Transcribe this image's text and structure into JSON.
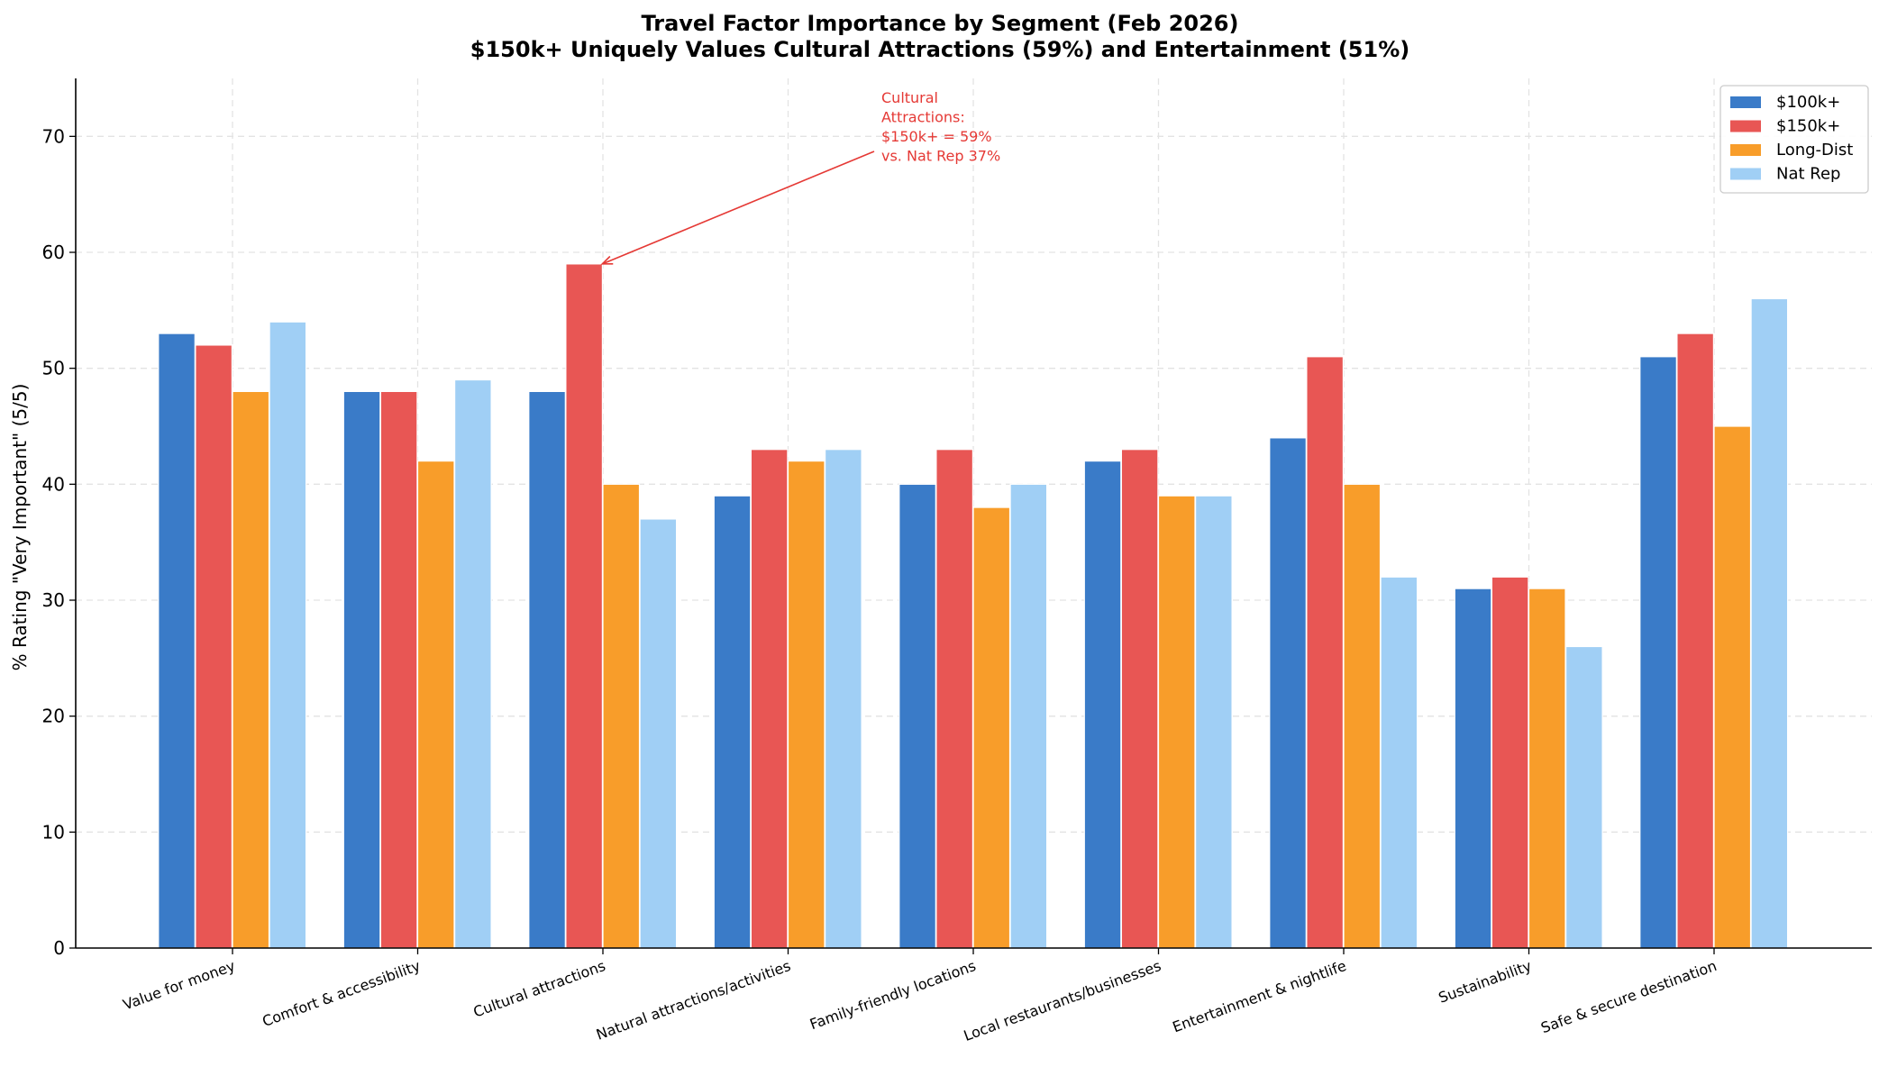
{
  "chart_data": {
    "type": "bar",
    "title": "Travel Factor Importance by Segment (Feb 2026)",
    "subtitle": "$150k+ Uniquely Values Cultural Attractions (59%) and Entertainment (51%)",
    "xlabel": "",
    "ylabel": "% Rating \"Very Important\" (5/5)",
    "ylim": [
      0,
      75
    ],
    "yticks": [
      0,
      10,
      20,
      30,
      40,
      50,
      60,
      70
    ],
    "grid": true,
    "legend_position": "top-right",
    "categories": [
      "Value for money",
      "Comfort & accessibility",
      "Cultural attractions",
      "Natural attractions/activities",
      "Family-friendly locations",
      "Local restaurants/businesses",
      "Entertainment & nightlife",
      "Sustainability",
      "Safe & secure destination"
    ],
    "series": [
      {
        "name": "$100k+",
        "color": "#3a7bc8",
        "values": [
          53,
          48,
          48,
          39,
          40,
          42,
          44,
          31,
          51
        ]
      },
      {
        "name": "$150k+",
        "color": "#e85654",
        "values": [
          52,
          48,
          59,
          43,
          43,
          43,
          51,
          32,
          53
        ]
      },
      {
        "name": "Long-Dist",
        "color": "#f89d2a",
        "values": [
          48,
          42,
          40,
          42,
          38,
          39,
          40,
          31,
          45
        ]
      },
      {
        "name": "Nat Rep",
        "color": "#a0cff5",
        "values": [
          54,
          49,
          37,
          43,
          40,
          39,
          32,
          26,
          56
        ]
      }
    ],
    "annotation": {
      "lines": [
        "Cultural",
        "Attractions:",
        "$150k+ = 59%",
        "vs. Nat Rep 37%"
      ],
      "color": "#e53935",
      "target_category": "Cultural attractions",
      "target_series": "$150k+",
      "target_value": 59
    }
  }
}
